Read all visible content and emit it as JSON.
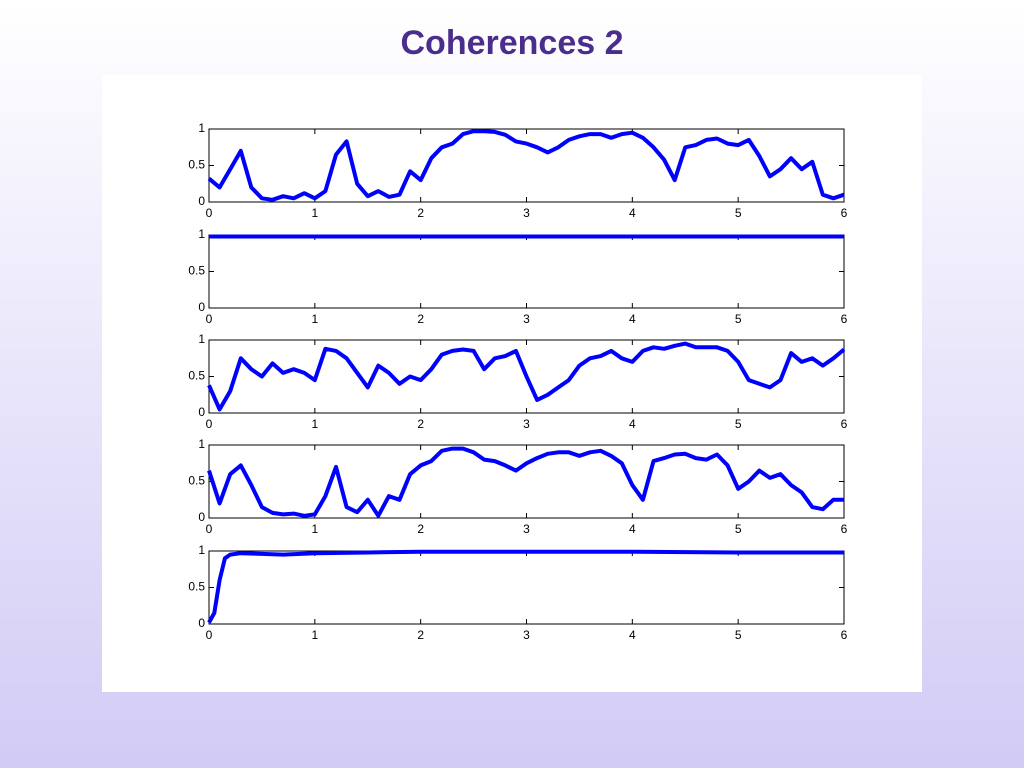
{
  "title": "Coherences 2",
  "chart_data": [
    {
      "type": "line",
      "xlim": [
        0,
        6
      ],
      "ylim": [
        0,
        1
      ],
      "xticks": [
        0,
        1,
        2,
        3,
        4,
        5,
        6
      ],
      "yticks": [
        0,
        0.5,
        1
      ],
      "color": "#0000ff",
      "x": [
        0,
        0.1,
        0.2,
        0.3,
        0.4,
        0.5,
        0.6,
        0.7,
        0.8,
        0.9,
        1,
        1.1,
        1.2,
        1.3,
        1.4,
        1.5,
        1.6,
        1.7,
        1.8,
        1.9,
        2,
        2.1,
        2.2,
        2.3,
        2.4,
        2.5,
        2.6,
        2.7,
        2.8,
        2.9,
        3,
        3.1,
        3.2,
        3.3,
        3.4,
        3.5,
        3.6,
        3.7,
        3.8,
        3.9,
        4,
        4.1,
        4.2,
        4.3,
        4.4,
        4.5,
        4.6,
        4.7,
        4.8,
        4.9,
        5,
        5.1,
        5.2,
        5.3,
        5.4,
        5.5,
        5.6,
        5.7,
        5.8,
        5.9,
        6
      ],
      "values": [
        0.32,
        0.2,
        0.45,
        0.7,
        0.2,
        0.05,
        0.03,
        0.08,
        0.05,
        0.12,
        0.05,
        0.15,
        0.65,
        0.83,
        0.25,
        0.08,
        0.15,
        0.07,
        0.1,
        0.42,
        0.3,
        0.6,
        0.75,
        0.8,
        0.93,
        0.97,
        0.97,
        0.96,
        0.92,
        0.83,
        0.8,
        0.75,
        0.68,
        0.75,
        0.85,
        0.9,
        0.93,
        0.93,
        0.88,
        0.93,
        0.95,
        0.88,
        0.75,
        0.58,
        0.3,
        0.75,
        0.78,
        0.85,
        0.87,
        0.8,
        0.78,
        0.85,
        0.63,
        0.35,
        0.45,
        0.6,
        0.45,
        0.55,
        0.1,
        0.05,
        0.1
      ]
    },
    {
      "type": "line",
      "xlim": [
        0,
        6
      ],
      "ylim": [
        0,
        1
      ],
      "xticks": [
        0,
        1,
        2,
        3,
        4,
        5,
        6
      ],
      "yticks": [
        0,
        0.5,
        1
      ],
      "color": "#0000ff",
      "x": [
        0,
        1,
        2,
        3,
        4,
        5,
        6
      ],
      "values": [
        0.98,
        0.98,
        0.98,
        0.98,
        0.98,
        0.98,
        0.98
      ]
    },
    {
      "type": "line",
      "xlim": [
        0,
        6
      ],
      "ylim": [
        0,
        1
      ],
      "xticks": [
        0,
        1,
        2,
        3,
        4,
        5,
        6
      ],
      "yticks": [
        0,
        0.5,
        1
      ],
      "color": "#0000ff",
      "x": [
        0,
        0.1,
        0.2,
        0.3,
        0.4,
        0.5,
        0.6,
        0.7,
        0.8,
        0.9,
        1,
        1.1,
        1.2,
        1.3,
        1.4,
        1.5,
        1.6,
        1.7,
        1.8,
        1.9,
        2,
        2.1,
        2.2,
        2.3,
        2.4,
        2.5,
        2.6,
        2.7,
        2.8,
        2.9,
        3,
        3.1,
        3.2,
        3.3,
        3.4,
        3.5,
        3.6,
        3.7,
        3.8,
        3.9,
        4,
        4.1,
        4.2,
        4.3,
        4.4,
        4.5,
        4.6,
        4.7,
        4.8,
        4.9,
        5,
        5.1,
        5.2,
        5.3,
        5.4,
        5.5,
        5.6,
        5.7,
        5.8,
        5.9,
        6
      ],
      "values": [
        0.38,
        0.05,
        0.3,
        0.75,
        0.6,
        0.5,
        0.68,
        0.55,
        0.6,
        0.55,
        0.45,
        0.88,
        0.85,
        0.75,
        0.55,
        0.35,
        0.65,
        0.55,
        0.4,
        0.5,
        0.45,
        0.6,
        0.8,
        0.85,
        0.87,
        0.85,
        0.6,
        0.75,
        0.78,
        0.85,
        0.5,
        0.18,
        0.25,
        0.35,
        0.45,
        0.65,
        0.75,
        0.78,
        0.85,
        0.75,
        0.7,
        0.85,
        0.9,
        0.88,
        0.92,
        0.95,
        0.9,
        0.9,
        0.9,
        0.85,
        0.7,
        0.45,
        0.4,
        0.35,
        0.45,
        0.82,
        0.7,
        0.75,
        0.65,
        0.75,
        0.87
      ]
    },
    {
      "type": "line",
      "xlim": [
        0,
        6
      ],
      "ylim": [
        0,
        1
      ],
      "xticks": [
        0,
        1,
        2,
        3,
        4,
        5,
        6
      ],
      "yticks": [
        0,
        0.5,
        1
      ],
      "color": "#0000ff",
      "x": [
        0,
        0.1,
        0.2,
        0.3,
        0.4,
        0.5,
        0.6,
        0.7,
        0.8,
        0.9,
        1,
        1.1,
        1.2,
        1.3,
        1.4,
        1.5,
        1.6,
        1.7,
        1.8,
        1.9,
        2,
        2.1,
        2.2,
        2.3,
        2.4,
        2.5,
        2.6,
        2.7,
        2.8,
        2.9,
        3,
        3.1,
        3.2,
        3.3,
        3.4,
        3.5,
        3.6,
        3.7,
        3.8,
        3.9,
        4,
        4.1,
        4.2,
        4.3,
        4.4,
        4.5,
        4.6,
        4.7,
        4.8,
        4.9,
        5,
        5.1,
        5.2,
        5.3,
        5.4,
        5.5,
        5.6,
        5.7,
        5.8,
        5.9,
        6
      ],
      "values": [
        0.65,
        0.2,
        0.6,
        0.72,
        0.45,
        0.15,
        0.07,
        0.05,
        0.06,
        0.03,
        0.05,
        0.3,
        0.7,
        0.15,
        0.08,
        0.25,
        0.03,
        0.3,
        0.25,
        0.6,
        0.72,
        0.78,
        0.92,
        0.95,
        0.95,
        0.9,
        0.8,
        0.78,
        0.72,
        0.65,
        0.75,
        0.82,
        0.88,
        0.9,
        0.9,
        0.85,
        0.9,
        0.92,
        0.85,
        0.75,
        0.45,
        0.25,
        0.78,
        0.82,
        0.87,
        0.88,
        0.82,
        0.8,
        0.87,
        0.72,
        0.4,
        0.5,
        0.65,
        0.55,
        0.6,
        0.45,
        0.35,
        0.15,
        0.12,
        0.25,
        0.25
      ]
    },
    {
      "type": "line",
      "xlim": [
        0,
        6
      ],
      "ylim": [
        0,
        1
      ],
      "xticks": [
        0,
        1,
        2,
        3,
        4,
        5,
        6
      ],
      "yticks": [
        0,
        0.5,
        1
      ],
      "color": "#0000ff",
      "x": [
        0,
        0.05,
        0.1,
        0.15,
        0.2,
        0.3,
        0.5,
        0.7,
        1,
        1.5,
        2,
        3,
        4,
        5,
        6
      ],
      "values": [
        0.02,
        0.15,
        0.6,
        0.9,
        0.95,
        0.97,
        0.96,
        0.95,
        0.97,
        0.98,
        0.99,
        0.99,
        0.99,
        0.98,
        0.98
      ]
    }
  ]
}
